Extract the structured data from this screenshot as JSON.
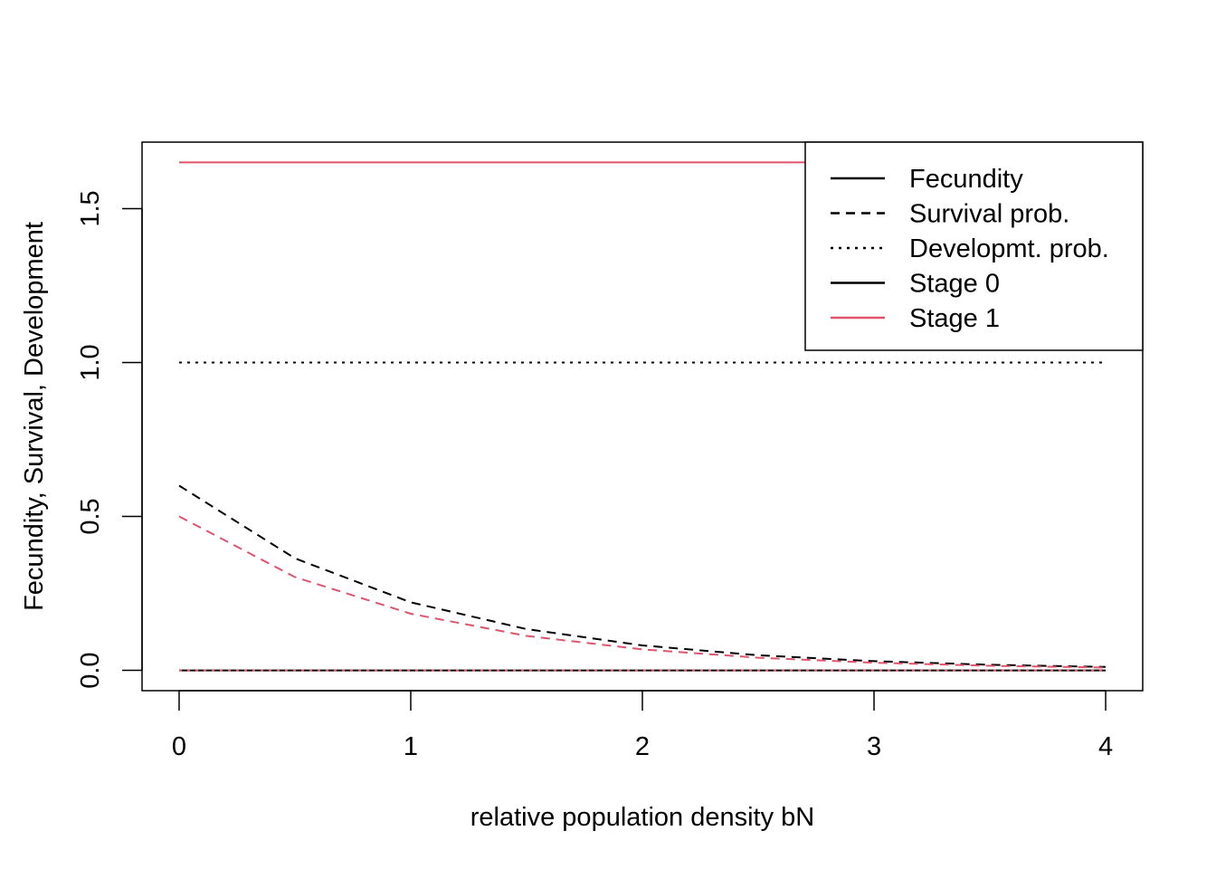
{
  "chart_data": {
    "type": "line",
    "title": "",
    "xlabel": "relative population density bN",
    "ylabel": "Fecundity, Survival, Development",
    "xlim": [
      -0.16,
      4.16
    ],
    "ylim": [
      -0.066,
      1.716
    ],
    "x_ticks": [
      "0",
      "1",
      "2",
      "3",
      "4"
    ],
    "y_ticks": [
      "0.0",
      "0.5",
      "1.0",
      "1.5"
    ],
    "grid": false,
    "legend_position": "top-right",
    "legend": [
      {
        "label": "Fecundity",
        "linestyle": "solid",
        "color": "#000000"
      },
      {
        "label": "Survival prob.",
        "linestyle": "dashed",
        "color": "#000000"
      },
      {
        "label": "Developmt. prob.",
        "linestyle": "dotted",
        "color": "#000000"
      },
      {
        "label": "Stage 0",
        "linestyle": "solid",
        "color": "#000000"
      },
      {
        "label": "Stage 1",
        "linestyle": "solid",
        "color": "#DF536B"
      }
    ],
    "series": [
      {
        "kind": "Fecundity",
        "stage": "Stage 0",
        "linestyle": "solid",
        "color": "#000000",
        "x": [
          0,
          4
        ],
        "y": [
          0,
          0
        ]
      },
      {
        "kind": "Fecundity",
        "stage": "Stage 1",
        "linestyle": "solid",
        "color": "#DF536B",
        "x": [
          0,
          4
        ],
        "y": [
          1.65,
          1.65
        ]
      },
      {
        "kind": "Survival prob.",
        "stage": "Stage 0",
        "linestyle": "dashed",
        "color": "#000000",
        "x": [
          0,
          0.5,
          1,
          1.5,
          2,
          2.5,
          3,
          3.5,
          4
        ],
        "y": [
          0.6,
          0.364,
          0.221,
          0.134,
          0.081,
          0.049,
          0.03,
          0.018,
          0.011
        ]
      },
      {
        "kind": "Survival prob.",
        "stage": "Stage 1",
        "linestyle": "dashed",
        "color": "#DF536B",
        "x": [
          0,
          0.5,
          1,
          1.5,
          2,
          2.5,
          3,
          3.5,
          4
        ],
        "y": [
          0.5,
          0.303,
          0.184,
          0.112,
          0.068,
          0.041,
          0.025,
          0.015,
          0.009
        ]
      },
      {
        "kind": "Developmt. prob.",
        "stage": "Stage 0",
        "linestyle": "dotted",
        "color": "#000000",
        "x": [
          0,
          4
        ],
        "y": [
          1.0,
          1.0
        ]
      },
      {
        "kind": "Developmt. prob.",
        "stage": "Stage 1",
        "linestyle": "dotted",
        "color": "#DF536B",
        "x": [
          0,
          4
        ],
        "y": [
          0,
          0
        ]
      }
    ]
  }
}
